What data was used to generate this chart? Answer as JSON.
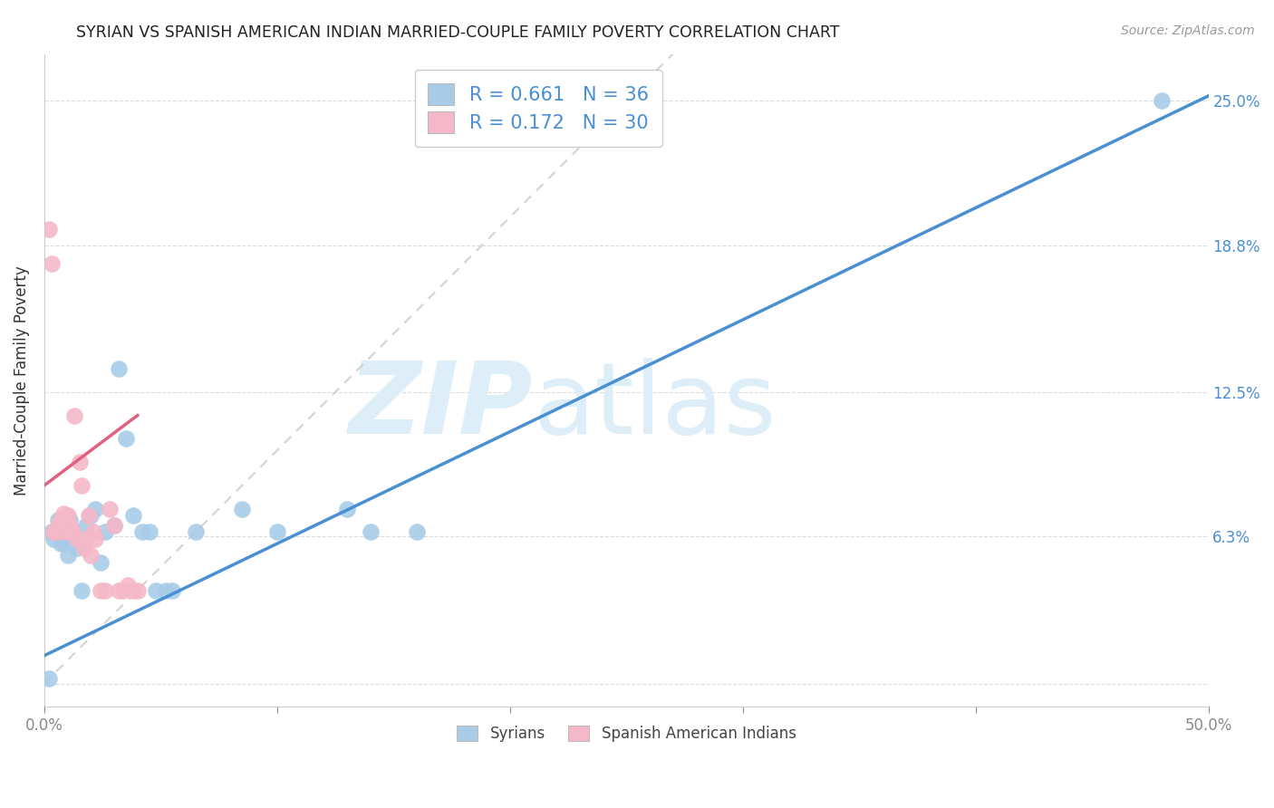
{
  "title": "SYRIAN VS SPANISH AMERICAN INDIAN MARRIED-COUPLE FAMILY POVERTY CORRELATION CHART",
  "source": "Source: ZipAtlas.com",
  "ylabel": "Married-Couple Family Poverty",
  "xlabel": "",
  "xlim": [
    0.0,
    0.5
  ],
  "ylim": [
    -0.01,
    0.27
  ],
  "xtick_positions": [
    0.0,
    0.1,
    0.2,
    0.3,
    0.4,
    0.5
  ],
  "xticklabels_ends": [
    "0.0%",
    "50.0%"
  ],
  "ytick_positions": [
    0.0,
    0.063,
    0.125,
    0.188,
    0.25
  ],
  "right_ytick_positions": [
    0.063,
    0.125,
    0.188,
    0.25
  ],
  "right_ytick_labels": [
    "6.3%",
    "12.5%",
    "18.8%",
    "25.0%"
  ],
  "syrians_R": 0.661,
  "syrians_N": 36,
  "spanish_R": 0.172,
  "spanish_N": 30,
  "syrians_color": "#a8cce8",
  "spanish_color": "#f5b8c8",
  "syrians_line_color": "#4a8fd4",
  "spanish_line_color": "#e06080",
  "diagonal_color": "#c8c8c8",
  "watermark_color": "#ddeef8",
  "legend_text_color": "#4a8fd4",
  "syrians_x": [
    0.002,
    0.003,
    0.004,
    0.005,
    0.006,
    0.007,
    0.008,
    0.009,
    0.01,
    0.011,
    0.012,
    0.013,
    0.014,
    0.015,
    0.016,
    0.018,
    0.02,
    0.022,
    0.024,
    0.026,
    0.03,
    0.032,
    0.035,
    0.038,
    0.042,
    0.045,
    0.048,
    0.052,
    0.055,
    0.065,
    0.085,
    0.1,
    0.13,
    0.14,
    0.16,
    0.48
  ],
  "syrians_y": [
    0.002,
    0.065,
    0.062,
    0.065,
    0.07,
    0.06,
    0.067,
    0.06,
    0.055,
    0.07,
    0.066,
    0.062,
    0.058,
    0.06,
    0.04,
    0.068,
    0.072,
    0.075,
    0.052,
    0.065,
    0.068,
    0.135,
    0.105,
    0.072,
    0.065,
    0.065,
    0.04,
    0.04,
    0.04,
    0.065,
    0.075,
    0.065,
    0.075,
    0.065,
    0.065,
    0.25
  ],
  "spanish_x": [
    0.002,
    0.003,
    0.004,
    0.005,
    0.006,
    0.007,
    0.008,
    0.009,
    0.01,
    0.011,
    0.012,
    0.013,
    0.014,
    0.015,
    0.016,
    0.017,
    0.018,
    0.019,
    0.02,
    0.021,
    0.022,
    0.024,
    0.026,
    0.028,
    0.03,
    0.032,
    0.034,
    0.036,
    0.038,
    0.04
  ],
  "spanish_y": [
    0.195,
    0.18,
    0.065,
    0.065,
    0.068,
    0.07,
    0.073,
    0.065,
    0.072,
    0.068,
    0.065,
    0.115,
    0.062,
    0.095,
    0.085,
    0.058,
    0.062,
    0.072,
    0.055,
    0.065,
    0.062,
    0.04,
    0.04,
    0.075,
    0.068,
    0.04,
    0.04,
    0.042,
    0.04,
    0.04
  ],
  "blue_line_x0": 0.0,
  "blue_line_y0": 0.012,
  "blue_line_x1": 0.5,
  "blue_line_y1": 0.252,
  "red_line_x0": 0.0,
  "red_line_y0": 0.085,
  "red_line_x1": 0.04,
  "red_line_y1": 0.115
}
